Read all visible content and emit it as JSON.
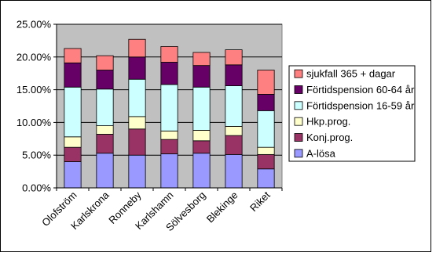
{
  "chart_data": {
    "type": "bar",
    "stacked": true,
    "categories": [
      "Olofström",
      "Karlskrona",
      "Ronneby",
      "Karlshamn",
      "Sölvesborg",
      "Blekinge",
      "Riket"
    ],
    "series": [
      {
        "name": "A-lösa",
        "color": "#9999FF",
        "values": [
          4.0,
          5.3,
          5.0,
          5.2,
          5.3,
          5.1,
          2.9
        ]
      },
      {
        "name": "Konj.prog.",
        "color": "#993366",
        "values": [
          2.2,
          2.9,
          4.0,
          2.2,
          1.9,
          2.9,
          2.2
        ]
      },
      {
        "name": "Hkp.prog.",
        "color": "#FFFFCC",
        "values": [
          1.6,
          1.3,
          1.9,
          1.3,
          1.6,
          1.4,
          1.1
        ]
      },
      {
        "name": "Förtidspension 16-59 år",
        "color": "#CCFFFF",
        "values": [
          7.6,
          5.6,
          5.7,
          7.1,
          6.6,
          6.2,
          5.6
        ]
      },
      {
        "name": "Förtidspension 60-64 år",
        "color": "#660066",
        "values": [
          3.7,
          2.9,
          3.4,
          3.4,
          3.3,
          3.2,
          2.5
        ]
      },
      {
        "name": "sjukfall 365 + dagar",
        "color": "#FF8080",
        "values": [
          2.2,
          2.2,
          2.7,
          2.4,
          2.0,
          2.3,
          3.7
        ]
      }
    ],
    "y_ticks": [
      "0.00%",
      "5.00%",
      "10.00%",
      "15.00%",
      "20.00%",
      "25.00%"
    ],
    "ylim": [
      0,
      25
    ],
    "y_unit": "%",
    "grid": true,
    "plot_background": "#C0C0C0",
    "legend_position": "right",
    "title": "",
    "xlabel": "",
    "ylabel": ""
  }
}
